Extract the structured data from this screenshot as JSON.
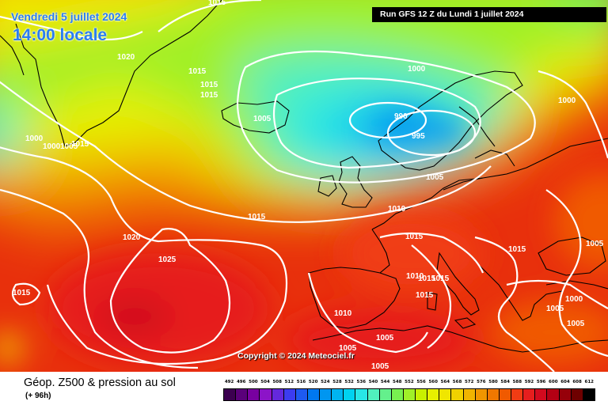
{
  "header": {
    "date": "Vendredi 5 juillet 2024",
    "time": "14:00 locale",
    "run": "Run GFS 12 Z du Lundi 1 juillet 2024"
  },
  "copyright": "Copyright © 2024 Meteociel.fr",
  "footer": {
    "product": "Géop. Z500 & pression au sol",
    "range": "(+ 96h)"
  },
  "isobar_labels": [
    "1015",
    "1020",
    "1015",
    "1015",
    "1015",
    "1000",
    "1005",
    "1000",
    "1015",
    "1005",
    "990",
    "995",
    "1005",
    "1000",
    "1010",
    "1015",
    "1020",
    "1025",
    "1015",
    "1015",
    "1015",
    "1015",
    "1015",
    "1010",
    "1015",
    "1005",
    "1010",
    "1000",
    "1005",
    "1005",
    "1005",
    "1005",
    "1000",
    "1005"
  ],
  "colorbar": {
    "labels": [
      "492",
      "496",
      "500",
      "504",
      "508",
      "512",
      "516",
      "520",
      "524",
      "528",
      "532",
      "536",
      "540",
      "544",
      "548",
      "552",
      "556",
      "560",
      "564",
      "568",
      "572",
      "576",
      "580",
      "584",
      "588",
      "592",
      "596",
      "600",
      "604",
      "608",
      "612"
    ],
    "colors": [
      "#3c0050",
      "#5a007a",
      "#7800a0",
      "#8c14c8",
      "#6428dc",
      "#3c3cf0",
      "#1e5af0",
      "#0078f0",
      "#0096f0",
      "#00b4f0",
      "#00d2f0",
      "#28e6e6",
      "#50f0be",
      "#64f08c",
      "#78f050",
      "#a0f028",
      "#c8f000",
      "#e6f000",
      "#f0e600",
      "#f0d200",
      "#f0b400",
      "#f09600",
      "#f07800",
      "#f05a00",
      "#f03c14",
      "#e61e1e",
      "#d20a1e",
      "#b40014",
      "#96000a",
      "#6e0000",
      "#000000"
    ]
  }
}
